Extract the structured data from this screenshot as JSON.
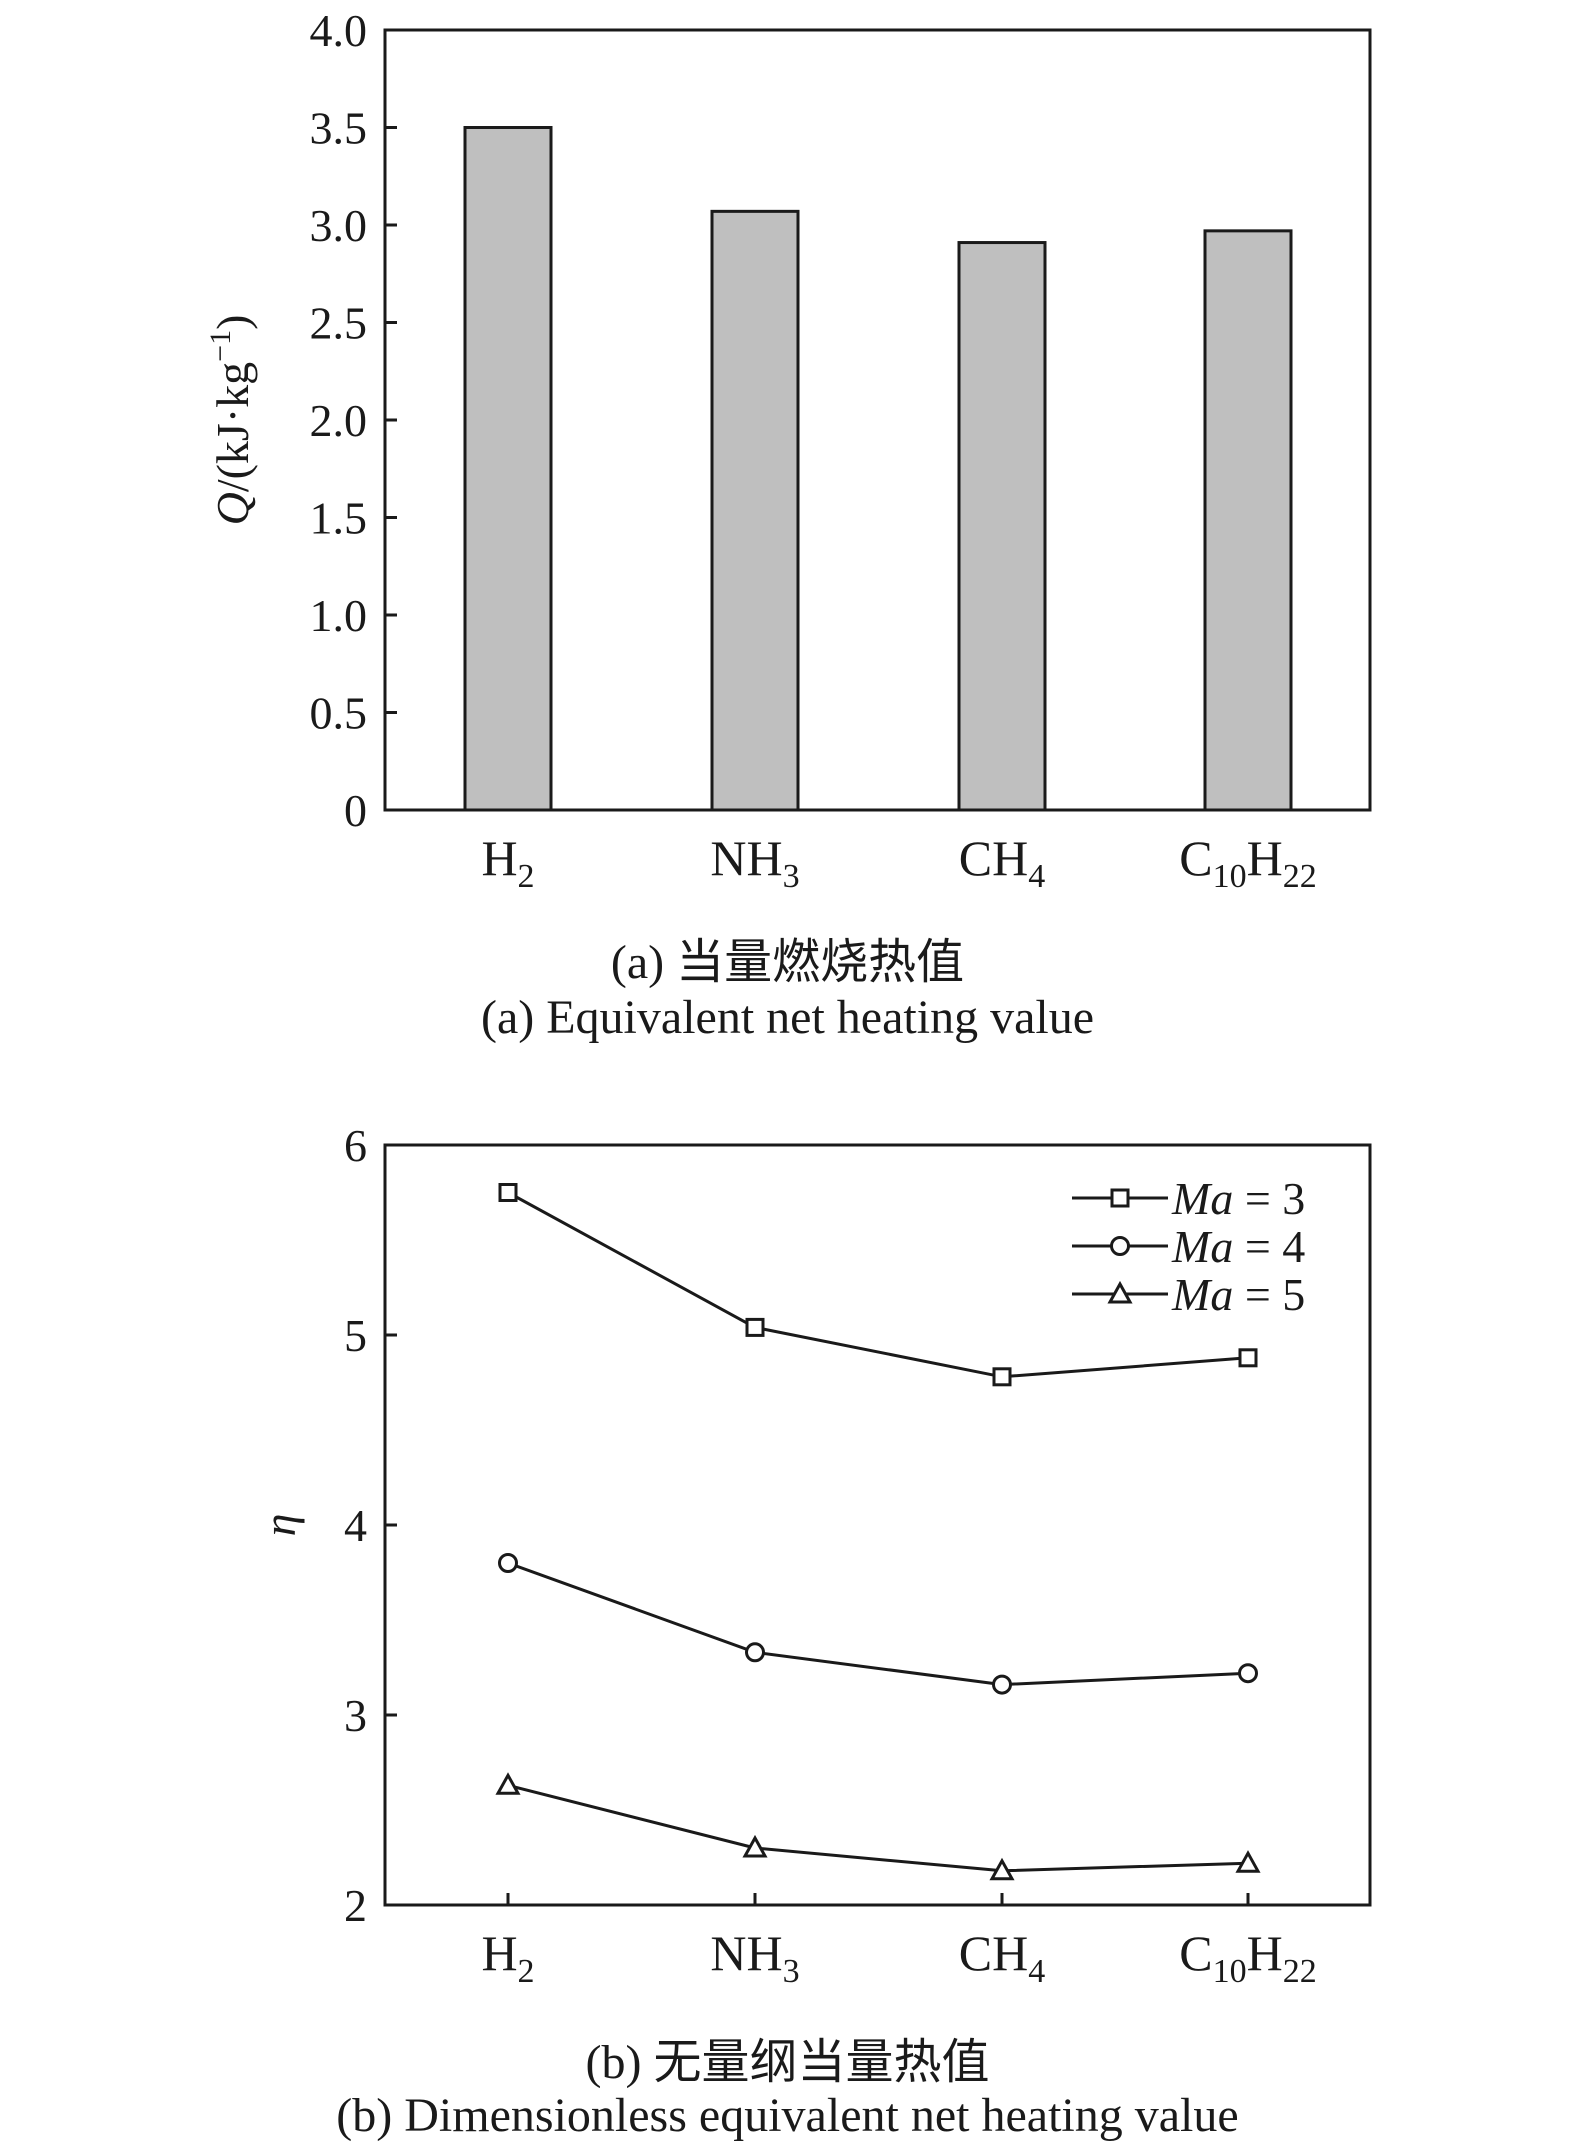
{
  "chart_data": [
    {
      "type": "bar",
      "categories": [
        "H2",
        "NH3",
        "CH4",
        "C10H22"
      ],
      "category_labels": [
        {
          "base": "H",
          "sub": "2",
          "tail": "",
          "tail_sub": ""
        },
        {
          "base": "NH",
          "sub": "3",
          "tail": "",
          "tail_sub": ""
        },
        {
          "base": "CH",
          "sub": "4",
          "tail": "",
          "tail_sub": ""
        },
        {
          "base": "C",
          "sub": "10",
          "tail": "H",
          "tail_sub": "22"
        }
      ],
      "values": [
        3.5,
        3.07,
        2.91,
        2.97
      ],
      "ylim": [
        0,
        4.0
      ],
      "yticks": [
        "0",
        "0.5",
        "1.0",
        "1.5",
        "2.0",
        "2.5",
        "3.0",
        "3.5",
        "4.0"
      ],
      "ylabel": {
        "symbol": "Q",
        "rest": "/(kJ·kg",
        "sup": "−1",
        "close": ")"
      },
      "xlabel": "",
      "bar_color": "#bfbfbf",
      "caption_cn": "(a) 当量燃烧热值",
      "caption_en": "(a) Equivalent net heating value"
    },
    {
      "type": "line",
      "categories": [
        "H2",
        "NH3",
        "CH4",
        "C10H22"
      ],
      "category_labels": [
        {
          "base": "H",
          "sub": "2",
          "tail": "",
          "tail_sub": ""
        },
        {
          "base": "NH",
          "sub": "3",
          "tail": "",
          "tail_sub": ""
        },
        {
          "base": "CH",
          "sub": "4",
          "tail": "",
          "tail_sub": ""
        },
        {
          "base": "C",
          "sub": "10",
          "tail": "H",
          "tail_sub": "22"
        }
      ],
      "series": [
        {
          "name": "Ma = 3",
          "name_italic": "Ma",
          "name_rest": " = 3",
          "marker": "square",
          "values": [
            5.75,
            5.04,
            4.78,
            4.88
          ]
        },
        {
          "name": "Ma = 4",
          "name_italic": "Ma",
          "name_rest": " = 4",
          "marker": "circle",
          "values": [
            3.8,
            3.33,
            3.16,
            3.22
          ]
        },
        {
          "name": "Ma = 5",
          "name_italic": "Ma",
          "name_rest": " = 5",
          "marker": "triangle",
          "values": [
            2.63,
            2.3,
            2.18,
            2.22
          ]
        }
      ],
      "ylim": [
        2,
        6
      ],
      "yticks": [
        "2",
        "3",
        "4",
        "5",
        "6"
      ],
      "ylabel": "η",
      "xlabel": "",
      "legend_position": "top-right",
      "caption_cn": "(b) 无量纲当量热值",
      "caption_en": "(b) Dimensionless equivalent net heating value"
    }
  ]
}
